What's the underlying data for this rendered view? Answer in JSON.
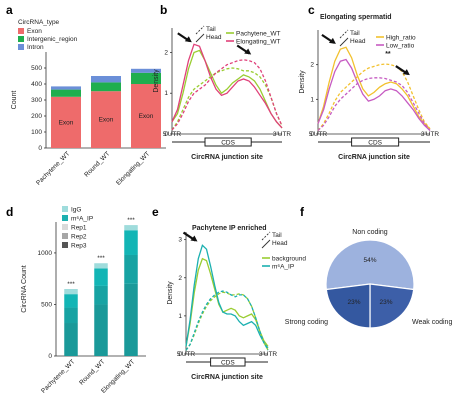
{
  "colors": {
    "exon": "#EE6B6B",
    "intergenic": "#1FAE4E",
    "intron": "#6B8FD8",
    "pachytene": "#9ACD32",
    "elongating_b": "#E0417A",
    "high_ratio": "#F2C12E",
    "low_ratio": "#C65BC2",
    "background": "#9ACD32",
    "m6a": "#1BB0B0",
    "igg": "#9FDCDC",
    "rep1": "#1A9999",
    "rep2": "#17A3A3",
    "rep3": "#12B5B5",
    "pie_noncoding": "#9DB2DE",
    "pie_strong": "#3D5FA8",
    "pie_weak": "#3458A0"
  },
  "panels": {
    "a": {
      "letter": "a"
    },
    "b": {
      "letter": "b"
    },
    "c": {
      "letter": "c",
      "title": "Elongating spermatid"
    },
    "d": {
      "letter": "d"
    },
    "e": {
      "letter": "e",
      "title": "Pachytene IP enriched"
    },
    "f": {
      "letter": "f"
    }
  },
  "chart_data": [
    {
      "id": "a",
      "type": "bar",
      "stacked": true,
      "categories": [
        "Pachytene_WT",
        "Round_WT",
        "Elongating_WT"
      ],
      "series": [
        {
          "name": "Exon",
          "values": [
            320,
            355,
            400
          ],
          "color_key": "exon",
          "bar_label": "Exon"
        },
        {
          "name": "Intergenic_region",
          "values": [
            45,
            55,
            70
          ],
          "color_key": "intergenic"
        },
        {
          "name": "Intron",
          "values": [
            20,
            40,
            25
          ],
          "color_key": "intron"
        }
      ],
      "legend_title": "CircRNA_type",
      "ylabel": "Count",
      "yticks": [
        0,
        100,
        200,
        300,
        400,
        500
      ],
      "ylim": [
        0,
        600
      ]
    },
    {
      "id": "b",
      "type": "line",
      "xlabel": "CircRNA junction site",
      "ylabel": "Density",
      "xtick_labels": [
        "5'UTR",
        "CDS",
        "3'UTR"
      ],
      "yticks": [
        0,
        1,
        2
      ],
      "ylim": [
        0,
        2.6
      ],
      "linetype_legend": [
        "Tail",
        "Head"
      ],
      "series": [
        {
          "name": "Pachytene_WT",
          "color_key": "pachytene",
          "dash": "solid",
          "x": [
            0,
            0.05,
            0.1,
            0.15,
            0.2,
            0.25,
            0.3,
            0.35,
            0.4,
            0.45,
            0.5,
            0.55,
            0.6,
            0.65,
            0.7,
            0.75,
            0.8,
            0.85,
            0.9,
            0.95,
            1
          ],
          "y": [
            0.3,
            0.5,
            1.0,
            1.6,
            2.0,
            2.05,
            1.8,
            1.5,
            1.2,
            1.0,
            1.1,
            1.25,
            1.35,
            1.45,
            1.4,
            1.3,
            1.1,
            0.8,
            0.5,
            0.3,
            0.15
          ]
        },
        {
          "name": "Elongating_WT",
          "color_key": "elongating_b",
          "dash": "solid",
          "x": [
            0,
            0.05,
            0.1,
            0.15,
            0.2,
            0.25,
            0.3,
            0.35,
            0.4,
            0.45,
            0.5,
            0.55,
            0.6,
            0.65,
            0.7,
            0.75,
            0.8,
            0.85,
            0.9,
            0.95,
            1
          ],
          "y": [
            0.3,
            0.6,
            1.2,
            1.8,
            2.2,
            2.15,
            1.8,
            1.4,
            1.1,
            0.95,
            1.0,
            1.15,
            1.3,
            1.35,
            1.3,
            1.15,
            0.95,
            0.75,
            0.5,
            0.3,
            0.15
          ]
        },
        {
          "name": "Pachytene_WT tail",
          "color_key": "pachytene",
          "dash": "dashed",
          "x": [
            0,
            0.05,
            0.1,
            0.15,
            0.2,
            0.25,
            0.3,
            0.35,
            0.4,
            0.45,
            0.5,
            0.55,
            0.6,
            0.65,
            0.7,
            0.75,
            0.8,
            0.85,
            0.9,
            0.95,
            1
          ],
          "y": [
            0.1,
            0.3,
            0.6,
            0.9,
            1.1,
            1.2,
            1.3,
            1.4,
            1.5,
            1.55,
            1.6,
            1.62,
            1.6,
            1.55,
            1.55,
            1.5,
            1.4,
            1.2,
            0.9,
            0.5,
            0.2
          ]
        },
        {
          "name": "Elongating_WT tail",
          "color_key": "elongating_b",
          "dash": "dashed",
          "x": [
            0,
            0.05,
            0.1,
            0.15,
            0.2,
            0.25,
            0.3,
            0.35,
            0.4,
            0.45,
            0.5,
            0.55,
            0.6,
            0.65,
            0.7,
            0.75,
            0.8,
            0.85,
            0.9,
            0.95,
            1
          ],
          "y": [
            0.1,
            0.25,
            0.5,
            0.8,
            1.0,
            1.1,
            1.2,
            1.35,
            1.5,
            1.6,
            1.7,
            1.75,
            1.8,
            1.82,
            1.8,
            1.75,
            1.6,
            1.3,
            0.9,
            0.5,
            0.2
          ]
        }
      ],
      "arrows": [
        {
          "x": 0.18,
          "y": 2.25
        },
        {
          "x": 0.72,
          "y": 1.95
        }
      ]
    },
    {
      "id": "c",
      "type": "line",
      "title": "Elongating spermatid",
      "xlabel": "CircRNA junction site",
      "ylabel": "Density",
      "xtick_labels": [
        "5'UTR",
        "CDS",
        "3'UTR"
      ],
      "yticks": [
        0,
        1,
        2
      ],
      "ylim": [
        0,
        3
      ],
      "linetype_legend": [
        "Tail",
        "Head"
      ],
      "annotation": "**",
      "series": [
        {
          "name": "High_ratio",
          "color_key": "high_ratio",
          "dash": "solid",
          "x": [
            0,
            0.05,
            0.1,
            0.15,
            0.2,
            0.25,
            0.3,
            0.35,
            0.4,
            0.45,
            0.5,
            0.55,
            0.6,
            0.65,
            0.7,
            0.75,
            0.8,
            0.85,
            0.9,
            0.95,
            1
          ],
          "y": [
            0.3,
            0.8,
            1.5,
            2.1,
            2.45,
            2.5,
            2.2,
            1.7,
            1.3,
            1.1,
            1.2,
            1.35,
            1.45,
            1.5,
            1.45,
            1.3,
            1.1,
            0.8,
            0.5,
            0.3,
            0.15
          ]
        },
        {
          "name": "Low_ratio",
          "color_key": "low_ratio",
          "dash": "solid",
          "x": [
            0,
            0.05,
            0.1,
            0.15,
            0.2,
            0.25,
            0.3,
            0.35,
            0.4,
            0.45,
            0.5,
            0.55,
            0.6,
            0.65,
            0.7,
            0.75,
            0.8,
            0.85,
            0.9,
            0.95,
            1
          ],
          "y": [
            0.3,
            0.7,
            1.3,
            1.8,
            2.1,
            2.15,
            1.9,
            1.5,
            1.15,
            0.95,
            1.0,
            1.1,
            1.25,
            1.3,
            1.25,
            1.1,
            0.9,
            0.7,
            0.45,
            0.25,
            0.1
          ]
        },
        {
          "name": "High_ratio tail",
          "color_key": "high_ratio",
          "dash": "dashed",
          "x": [
            0,
            0.05,
            0.1,
            0.15,
            0.2,
            0.25,
            0.3,
            0.35,
            0.4,
            0.45,
            0.5,
            0.55,
            0.6,
            0.65,
            0.7,
            0.75,
            0.8,
            0.85,
            0.9,
            0.95,
            1
          ],
          "y": [
            0.1,
            0.3,
            0.6,
            0.95,
            1.2,
            1.35,
            1.5,
            1.65,
            1.8,
            1.9,
            1.95,
            2.0,
            2.02,
            2.0,
            1.95,
            1.8,
            1.5,
            1.1,
            0.7,
            0.35,
            0.15
          ]
        },
        {
          "name": "Low_ratio tail",
          "color_key": "low_ratio",
          "dash": "dashed",
          "x": [
            0,
            0.05,
            0.1,
            0.15,
            0.2,
            0.25,
            0.3,
            0.35,
            0.4,
            0.45,
            0.5,
            0.55,
            0.6,
            0.65,
            0.7,
            0.75,
            0.8,
            0.85,
            0.9,
            0.95,
            1
          ],
          "y": [
            0.1,
            0.25,
            0.5,
            0.8,
            1.0,
            1.15,
            1.3,
            1.45,
            1.55,
            1.6,
            1.62,
            1.62,
            1.6,
            1.55,
            1.5,
            1.4,
            1.2,
            0.9,
            0.6,
            0.3,
            0.1
          ]
        }
      ],
      "arrows": [
        {
          "x": 0.16,
          "y": 2.6
        },
        {
          "x": 0.82,
          "y": 1.7
        }
      ]
    },
    {
      "id": "d",
      "type": "bar",
      "stacked": true,
      "categories": [
        "Pachytene_WT",
        "Round_WT",
        "Elongating_WT"
      ],
      "series": [
        {
          "name": "Rep3",
          "values": [
            320,
            500,
            700
          ],
          "color_key": "rep1"
        },
        {
          "name": "Rep2",
          "values": [
            150,
            180,
            280
          ],
          "color_key": "rep2"
        },
        {
          "name": "Rep1",
          "values": [
            130,
            170,
            240
          ],
          "color_key": "rep3"
        },
        {
          "name": "IgG",
          "values": [
            50,
            50,
            50
          ],
          "color_key": "igg"
        }
      ],
      "totals": [
        650,
        900,
        1270
      ],
      "significance": [
        "***",
        "***",
        "***"
      ],
      "legend": [
        "IgG",
        "m⁶A_IP",
        "Rep1",
        "Rep2",
        "Rep3"
      ],
      "ylabel": "CircRNA Count",
      "yticks": [
        0,
        500,
        1000
      ],
      "ylim": [
        0,
        1300
      ]
    },
    {
      "id": "e",
      "type": "line",
      "title": "Pachytene IP enriched",
      "xlabel": "CircRNA junction site",
      "ylabel": "Density",
      "xtick_labels": [
        "5'UTR",
        "CDS",
        "3'UTR"
      ],
      "yticks": [
        0,
        1,
        2,
        3
      ],
      "ylim": [
        0,
        3.2
      ],
      "linetype_legend": [
        "Tail",
        "Head"
      ],
      "series": [
        {
          "name": "background",
          "color_key": "background",
          "dash": "solid",
          "x": [
            0,
            0.05,
            0.1,
            0.15,
            0.2,
            0.25,
            0.3,
            0.35,
            0.4,
            0.45,
            0.5,
            0.55,
            0.6,
            0.65,
            0.7,
            0.75,
            0.8,
            0.85,
            0.9,
            0.95,
            1
          ],
          "y": [
            0.2,
            0.8,
            1.6,
            2.2,
            2.5,
            2.45,
            2.1,
            1.7,
            1.3,
            1.1,
            1.15,
            1.2,
            1.15,
            1.0,
            0.95,
            1.0,
            1.05,
            0.9,
            0.6,
            0.35,
            0.2
          ]
        },
        {
          "name": "m⁶A_IP",
          "color_key": "m6a",
          "dash": "solid",
          "x": [
            0,
            0.05,
            0.1,
            0.15,
            0.2,
            0.25,
            0.3,
            0.35,
            0.4,
            0.45,
            0.5,
            0.55,
            0.6,
            0.65,
            0.7,
            0.75,
            0.8,
            0.85,
            0.9,
            0.95,
            1
          ],
          "y": [
            0.2,
            0.9,
            1.8,
            2.5,
            2.85,
            2.75,
            2.3,
            1.8,
            1.35,
            1.1,
            1.05,
            1.05,
            1.0,
            0.85,
            0.75,
            0.8,
            0.85,
            0.75,
            0.5,
            0.3,
            0.15
          ]
        },
        {
          "name": "background tail",
          "color_key": "background",
          "dash": "dashed",
          "x": [
            0,
            0.05,
            0.1,
            0.15,
            0.2,
            0.25,
            0.3,
            0.35,
            0.4,
            0.45,
            0.5,
            0.55,
            0.6,
            0.65,
            0.7,
            0.75,
            0.8,
            0.85,
            0.9,
            0.95,
            1
          ],
          "y": [
            0.1,
            0.25,
            0.5,
            0.8,
            1.05,
            1.25,
            1.4,
            1.5,
            1.58,
            1.62,
            1.6,
            1.55,
            1.55,
            1.58,
            1.55,
            1.45,
            1.25,
            0.95,
            0.6,
            0.3,
            0.1
          ]
        },
        {
          "name": "m⁶A_IP tail",
          "color_key": "m6a",
          "dash": "dashed",
          "x": [
            0,
            0.05,
            0.1,
            0.15,
            0.2,
            0.25,
            0.3,
            0.35,
            0.4,
            0.45,
            0.5,
            0.55,
            0.6,
            0.65,
            0.7,
            0.75,
            0.8,
            0.85,
            0.9,
            0.95,
            1
          ],
          "y": [
            0.1,
            0.25,
            0.55,
            0.85,
            1.1,
            1.3,
            1.45,
            1.55,
            1.62,
            1.65,
            1.62,
            1.55,
            1.5,
            1.55,
            1.55,
            1.45,
            1.25,
            0.95,
            0.6,
            0.3,
            0.1
          ]
        }
      ],
      "arrows": [
        {
          "x": 0.14,
          "y": 2.95
        }
      ]
    },
    {
      "id": "f",
      "type": "pie",
      "categories": [
        "Non coding",
        "Strong coding",
        "Weak coding"
      ],
      "values": [
        54,
        23,
        23
      ],
      "value_labels": [
        "54%",
        "23%",
        "23%"
      ],
      "color_keys": [
        "pie_noncoding",
        "pie_strong",
        "pie_weak"
      ]
    }
  ]
}
